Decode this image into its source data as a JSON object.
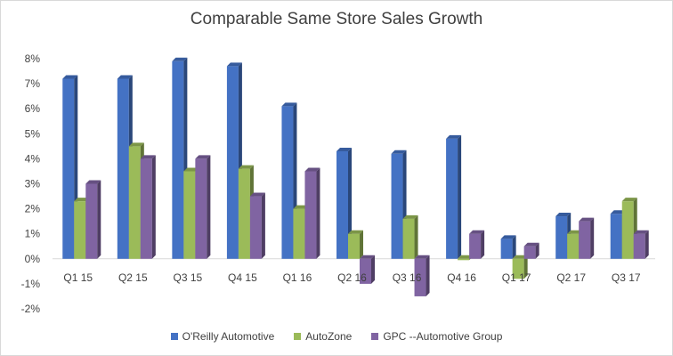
{
  "chart_data": {
    "type": "bar",
    "title": "Comparable Same Store Sales Growth",
    "xlabel": "",
    "ylabel": "",
    "categories": [
      "Q1 15",
      "Q2 15",
      "Q3 15",
      "Q4 15",
      "Q1 16",
      "Q2 16",
      "Q3 16",
      "Q4 16",
      "Q1 17",
      "Q2 17",
      "Q3 17"
    ],
    "y_ticks": [
      "-2%",
      "-1%",
      "0%",
      "1%",
      "2%",
      "3%",
      "4%",
      "5%",
      "6%",
      "7%",
      "8%"
    ],
    "ylim": [
      -2,
      8
    ],
    "grid": false,
    "legend_position": "bottom",
    "series": [
      {
        "name": "O'Reilly Automotive",
        "color": "#4472c4",
        "values": [
          7.2,
          7.2,
          7.9,
          7.7,
          6.1,
          4.3,
          4.2,
          4.8,
          0.8,
          1.7,
          1.8
        ]
      },
      {
        "name": "AutoZone",
        "color": "#9bbb59",
        "values": [
          2.3,
          4.5,
          3.5,
          3.6,
          2.0,
          1.0,
          1.6,
          0.0,
          -0.8,
          1.0,
          2.3
        ]
      },
      {
        "name": "GPC --Automotive Group",
        "color": "#8064a2",
        "values": [
          3.0,
          4.0,
          4.0,
          2.5,
          3.5,
          -1.0,
          -1.5,
          1.0,
          0.5,
          1.5,
          1.0
        ]
      }
    ]
  }
}
